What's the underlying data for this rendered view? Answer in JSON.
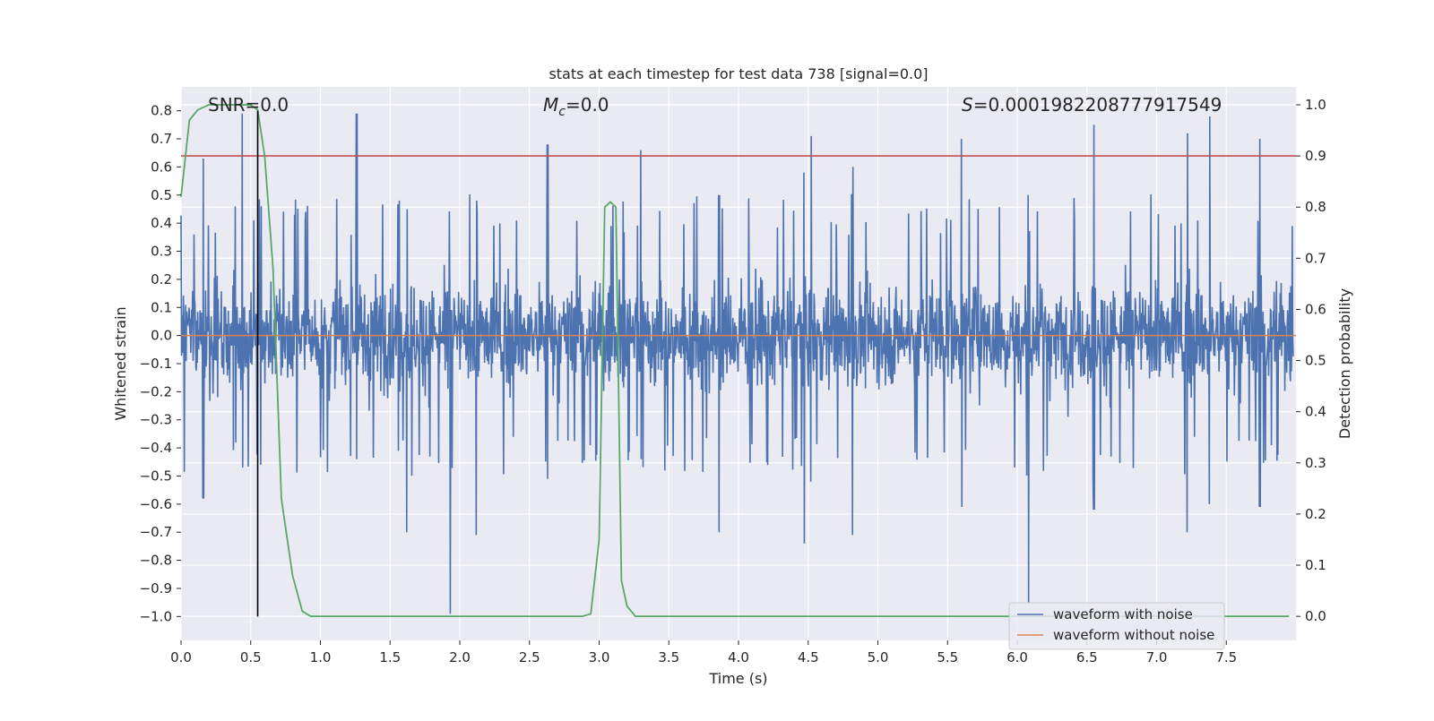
{
  "chart_data": {
    "type": "line",
    "title": "stats at each timestep for test data 738 [signal=0.0]",
    "xlabel": "Time (s)",
    "ylabel_left": "Whitened strain",
    "ylabel_right": "Detection probability",
    "xlim": [
      0.0,
      8.0
    ],
    "ylim_left": [
      -1.085,
      0.885
    ],
    "ylim_right": [
      -0.047,
      1.035
    ],
    "x_ticks": [
      "0.0",
      "0.5",
      "1.0",
      "1.5",
      "2.0",
      "2.5",
      "3.0",
      "3.5",
      "4.0",
      "4.5",
      "5.0",
      "5.5",
      "6.0",
      "6.5",
      "7.0",
      "7.5"
    ],
    "y_ticks_left": [
      "0.8",
      "0.7",
      "0.6",
      "0.5",
      "0.4",
      "0.3",
      "0.2",
      "0.1",
      "0.0",
      "−0.1",
      "−0.2",
      "−0.3",
      "−0.4",
      "−0.5",
      "−0.6",
      "−0.7",
      "−0.8",
      "−0.9",
      "−1.0"
    ],
    "y_ticks_right": [
      "1.0",
      "0.9",
      "0.8",
      "0.7",
      "0.6",
      "0.5",
      "0.4",
      "0.3",
      "0.2",
      "0.1",
      "0.0"
    ],
    "grid": true,
    "legend_position": "lower-right",
    "annotations": {
      "snr": "SNR=0.0",
      "mc_symbol": "M",
      "mc_subscript": "c",
      "mc_value": "=0.0",
      "s_symbol": "S",
      "s_value": "=0.0001982208777917549"
    },
    "colors": {
      "noise": "#4c72b0",
      "clean": "#dd8452",
      "probability": "#55a868",
      "threshold": "#c44e52",
      "marker": "#000000",
      "background": "#eaeaf2",
      "grid": "#ffffff"
    },
    "threshold_probability": 0.9,
    "marker_x": 0.55,
    "noise_series": {
      "name": "waveform with noise",
      "envelope_typical": 0.42,
      "envelope_peaks": [
        {
          "x": 0.44,
          "max": 0.79,
          "min": -0.47
        },
        {
          "x": 0.16,
          "max": 0.63,
          "min": -0.58
        },
        {
          "x": 1.26,
          "max": 0.79,
          "min": -0.44
        },
        {
          "x": 1.93,
          "max": 0.18,
          "min": -0.99
        },
        {
          "x": 2.12,
          "max": 0.48,
          "min": -0.71
        },
        {
          "x": 1.62,
          "max": 0.45,
          "min": -0.7
        },
        {
          "x": 2.63,
          "max": 0.68,
          "min": -0.51
        },
        {
          "x": 3.3,
          "max": 0.66,
          "min": -0.44
        },
        {
          "x": 3.86,
          "max": 0.5,
          "min": -0.7
        },
        {
          "x": 4.47,
          "max": 0.58,
          "min": -0.74
        },
        {
          "x": 4.52,
          "max": 0.71,
          "min": -0.52
        },
        {
          "x": 4.82,
          "max": 0.6,
          "min": -0.71
        },
        {
          "x": 5.6,
          "max": 0.7,
          "min": -0.61
        },
        {
          "x": 6.08,
          "max": 0.5,
          "min": -0.95
        },
        {
          "x": 6.55,
          "max": 0.75,
          "min": -0.62
        },
        {
          "x": 7.22,
          "max": 0.72,
          "min": -0.7
        },
        {
          "x": 7.38,
          "max": 0.78,
          "min": -0.6
        },
        {
          "x": 7.74,
          "max": 0.7,
          "min": -0.61
        }
      ]
    },
    "clean_series": {
      "name": "waveform without noise",
      "x": [
        0.0,
        8.0
      ],
      "y": [
        0.0,
        0.0
      ]
    },
    "probability_series": {
      "name": "Detection probability",
      "x": [
        0.0,
        0.06,
        0.12,
        0.2,
        0.3,
        0.4,
        0.5,
        0.55,
        0.6,
        0.66,
        0.72,
        0.8,
        0.87,
        0.93,
        1.0,
        1.5,
        2.0,
        2.5,
        2.88,
        2.94,
        3.0,
        3.04,
        3.08,
        3.12,
        3.16,
        3.2,
        3.26,
        3.3,
        4.0,
        5.0,
        6.0,
        7.0,
        7.95
      ],
      "y": [
        0.82,
        0.97,
        0.99,
        1.0,
        1.0,
        1.0,
        1.0,
        0.99,
        0.9,
        0.68,
        0.23,
        0.08,
        0.01,
        0.0,
        0.0,
        0.0,
        0.0,
        0.0,
        0.0,
        0.005,
        0.15,
        0.8,
        0.81,
        0.8,
        0.07,
        0.02,
        0.0,
        0.0,
        0.0,
        0.0,
        0.0,
        0.0,
        0.0
      ]
    }
  }
}
